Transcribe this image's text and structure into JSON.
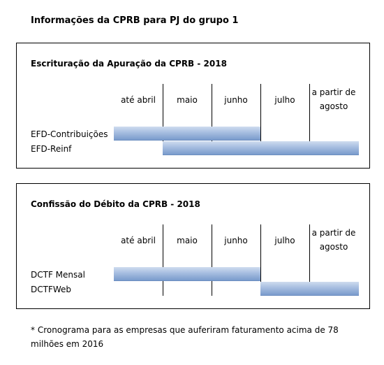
{
  "title": "Informações da CPRB para PJ do grupo 1",
  "panels": [
    {
      "title": "Escrituração da Apuração da CPRB - 2018",
      "columns": [
        "até abril",
        "maio",
        "junho",
        "julho",
        "a partir de agosto"
      ],
      "rows": [
        {
          "label": "EFD-Contribuições",
          "period": "até abril – junho"
        },
        {
          "label": "EFD-Reinf",
          "period": "maio – a partir de agosto"
        }
      ]
    },
    {
      "title": "Confissão do Débito da CPRB - 2018",
      "columns": [
        "até abril",
        "maio",
        "junho",
        "julho",
        "a partir de agosto"
      ],
      "rows": [
        {
          "label": "DCTF Mensal",
          "period": "até abril – junho"
        },
        {
          "label": "DCTFWeb",
          "period": "julho – a partir de agosto"
        }
      ]
    }
  ],
  "footnote": "* Cronograma para as empresas que auferiram faturamento acima de 78 milhões em 2016",
  "colors": {
    "bar": "#8eaadb",
    "border": "#000000"
  }
}
